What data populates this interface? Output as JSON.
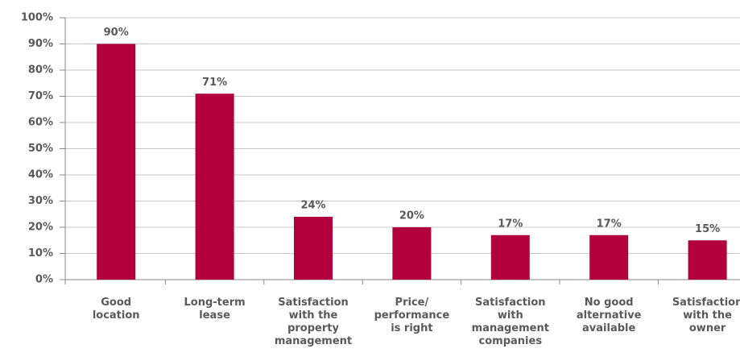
{
  "chart_data": {
    "type": "bar",
    "categories": [
      "Good\nlocation",
      "Long-term\nlease",
      "Satisfaction\nwith the\nproperty\nmanagement",
      "Price/\nperformance\nis right",
      "Satisfaction\nwith\nmanagement\ncompanies",
      "No good\nalternative\navailable",
      "Satisfaction\nwith the\nowner"
    ],
    "values": [
      90,
      71,
      24,
      20,
      17,
      17,
      15
    ],
    "value_labels": [
      "90%",
      "71%",
      "24%",
      "20%",
      "17%",
      "17%",
      "15%"
    ],
    "color": "#b2003c",
    "ylim": [
      0,
      100
    ],
    "yticks": [
      {
        "value": 0,
        "label": "0%"
      },
      {
        "value": 10,
        "label": "10%"
      },
      {
        "value": 20,
        "label": "20%"
      },
      {
        "value": 30,
        "label": "30%"
      },
      {
        "value": 40,
        "label": "40%"
      },
      {
        "value": 50,
        "label": "50%"
      },
      {
        "value": 60,
        "label": "60%"
      },
      {
        "value": 70,
        "label": "70%"
      },
      {
        "value": 80,
        "label": "80%"
      },
      {
        "value": 90,
        "label": "90%"
      },
      {
        "value": 100,
        "label": "100%"
      }
    ],
    "grid": true
  }
}
